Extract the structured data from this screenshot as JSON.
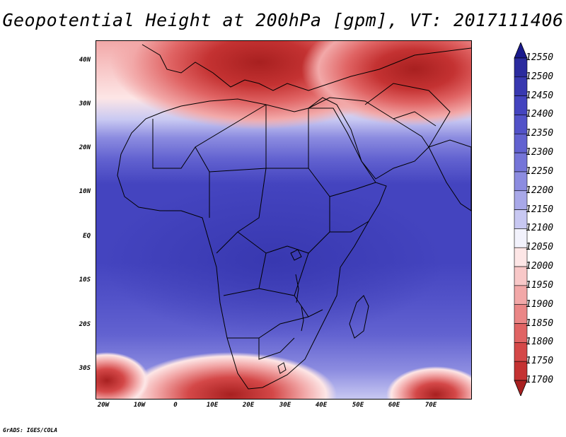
{
  "title": "Geopotential Height at 200hPa [gpm], VT: 2017111406",
  "footer": "GrADS: IGES/COLA",
  "map": {
    "lat_labels": [
      "40N",
      "30N",
      "20N",
      "10N",
      "EQ",
      "10S",
      "20S",
      "30S"
    ],
    "lon_labels": [
      "20W",
      "10W",
      "0",
      "10E",
      "20E",
      "30E",
      "40E",
      "50E",
      "60E",
      "70E"
    ],
    "lat_range": [
      -37,
      45
    ],
    "lon_range": [
      -23,
      80
    ]
  },
  "legend": {
    "labels": [
      "12550",
      "12500",
      "12450",
      "12400",
      "12350",
      "12300",
      "12250",
      "12200",
      "12150",
      "12100",
      "12050",
      "12000",
      "11950",
      "11900",
      "11850",
      "11800",
      "11750",
      "11700"
    ],
    "colors": [
      "#1a1a8c",
      "#2b2b9e",
      "#3838b0",
      "#4444bf",
      "#5252c8",
      "#6262d0",
      "#7575d8",
      "#8c8ce0",
      "#a8a8e8",
      "#c8c8f2",
      "#f2f2fc",
      "#fde6e6",
      "#f8c8c8",
      "#f2a8a8",
      "#ea8686",
      "#e06464",
      "#d44848",
      "#c43232",
      "#a82020"
    ],
    "top_arrow_color": "#1a1a8c",
    "bottom_arrow_color": "#a82020"
  }
}
